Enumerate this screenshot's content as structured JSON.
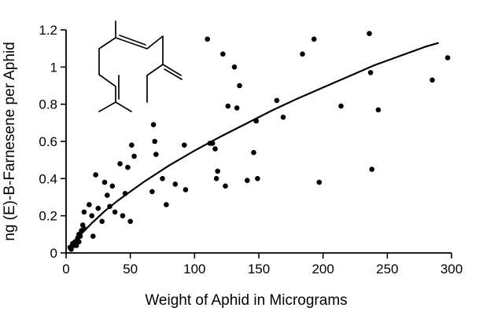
{
  "chart_data": {
    "type": "scatter",
    "xlabel": "Weight of Aphid in Micrograms",
    "ylabel": "ng (E)-B-Farnesene per Aphid",
    "xlim": [
      0,
      300
    ],
    "ylim": [
      0,
      1.2
    ],
    "x_ticks": [
      "0",
      "50",
      "100",
      "150",
      "200",
      "250",
      "300"
    ],
    "y_ticks": [
      "0",
      "0.2",
      "0.4",
      "0.6",
      "0.8",
      "1",
      "1.2"
    ],
    "grid": false,
    "legend": "none",
    "inset_icon": "farnesene-structure-icon",
    "series": [
      {
        "kind": "points",
        "points": [
          [
            3,
            0.03
          ],
          [
            4,
            0.02
          ],
          [
            5,
            0.05
          ],
          [
            6,
            0.04
          ],
          [
            7,
            0.06
          ],
          [
            8,
            0.04
          ],
          [
            9,
            0.08
          ],
          [
            10,
            0.1
          ],
          [
            10,
            0.06
          ],
          [
            11,
            0.09
          ],
          [
            12,
            0.12
          ],
          [
            13,
            0.15
          ],
          [
            14,
            0.13
          ],
          [
            14,
            0.22
          ],
          [
            18,
            0.26
          ],
          [
            20,
            0.2
          ],
          [
            21,
            0.09
          ],
          [
            23,
            0.42
          ],
          [
            25,
            0.24
          ],
          [
            28,
            0.17
          ],
          [
            30,
            0.38
          ],
          [
            32,
            0.31
          ],
          [
            34,
            0.25
          ],
          [
            36,
            0.36
          ],
          [
            38,
            0.22
          ],
          [
            42,
            0.48
          ],
          [
            44,
            0.2
          ],
          [
            46,
            0.32
          ],
          [
            48,
            0.46
          ],
          [
            50,
            0.17
          ],
          [
            51,
            0.58
          ],
          [
            53,
            0.52
          ],
          [
            68,
            0.69
          ],
          [
            69,
            0.6
          ],
          [
            70,
            0.53
          ],
          [
            67,
            0.33
          ],
          [
            75,
            0.4
          ],
          [
            78,
            0.26
          ],
          [
            85,
            0.37
          ],
          [
            92,
            0.58
          ],
          [
            93,
            0.34
          ],
          [
            110,
            1.15
          ],
          [
            112,
            0.59
          ],
          [
            114,
            0.59
          ],
          [
            116,
            0.56
          ],
          [
            117,
            0.4
          ],
          [
            118,
            0.44
          ],
          [
            122,
            1.07
          ],
          [
            124,
            0.36
          ],
          [
            126,
            0.79
          ],
          [
            131,
            1.0
          ],
          [
            133,
            0.78
          ],
          [
            135,
            0.9
          ],
          [
            141,
            0.39
          ],
          [
            146,
            0.54
          ],
          [
            148,
            0.71
          ],
          [
            149,
            0.4
          ],
          [
            164,
            0.82
          ],
          [
            169,
            0.73
          ],
          [
            184,
            1.07
          ],
          [
            193,
            1.15
          ],
          [
            197,
            0.38
          ],
          [
            214,
            0.79
          ],
          [
            236,
            1.18
          ],
          [
            237,
            0.97
          ],
          [
            238,
            0.45
          ],
          [
            243,
            0.77
          ],
          [
            285,
            0.93
          ],
          [
            297,
            1.05
          ]
        ]
      },
      {
        "kind": "fit-curve",
        "x": [
          2,
          10,
          20,
          30,
          40,
          50,
          60,
          80,
          100,
          120,
          140,
          160,
          180,
          200,
          220,
          240,
          260,
          280,
          290
        ],
        "y": [
          0.02,
          0.09,
          0.16,
          0.225,
          0.28,
          0.33,
          0.38,
          0.47,
          0.55,
          0.625,
          0.695,
          0.765,
          0.83,
          0.89,
          0.95,
          1.01,
          1.06,
          1.11,
          1.13
        ]
      }
    ]
  }
}
